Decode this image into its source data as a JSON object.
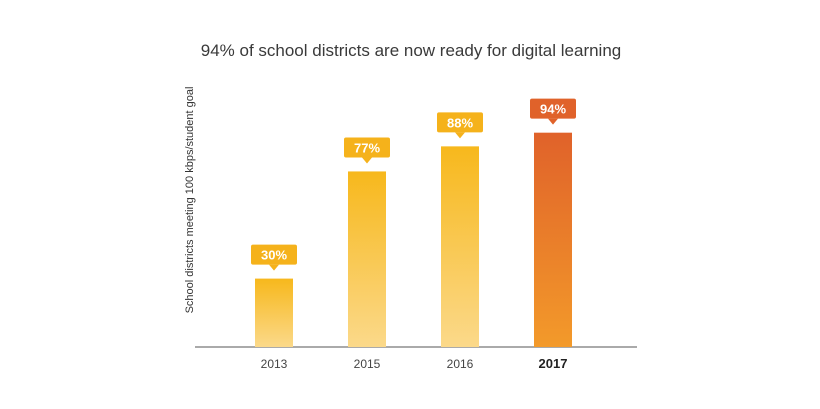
{
  "chart_data": {
    "type": "bar",
    "title": "94% of school districts are now ready for digital learning",
    "ylabel": "School districts meeting 100 kbps/student goal",
    "xlabel": "",
    "categories": [
      "2013",
      "2015",
      "2016",
      "2017"
    ],
    "values": [
      30,
      77,
      88,
      94
    ],
    "data_labels": [
      "30%",
      "77%",
      "88%",
      "94%"
    ],
    "highlight_category": "2017",
    "ylim": [
      0,
      100
    ],
    "grid": false,
    "legend": "none",
    "colors": {
      "bar_top": "#f7b81c",
      "bar_bottom": "#fbd98a",
      "highlight_top": "#e0622a",
      "highlight_bottom": "#f39a2a",
      "label_box": "#f5b21b",
      "highlight_label_box": "#e0622a",
      "axis": "#555555"
    }
  }
}
